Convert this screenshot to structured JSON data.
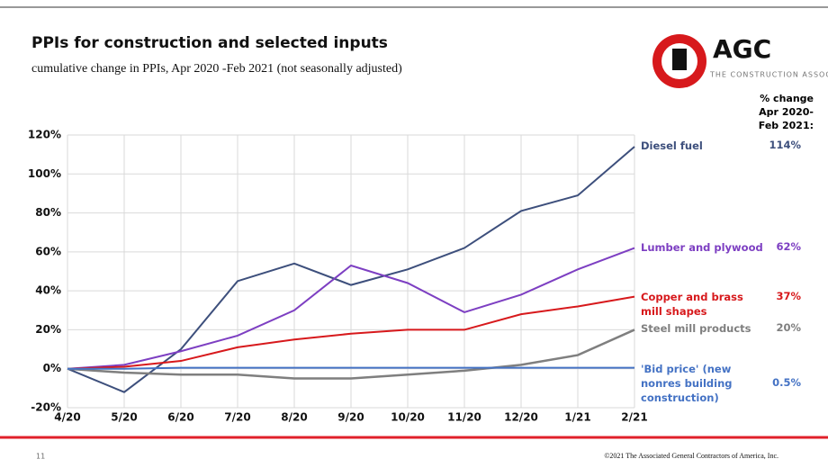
{
  "chart_data": {
    "type": "line",
    "title": "PPIs for construction and selected inputs",
    "subtitle": "cumulative change in PPIs, Apr 2020 -Feb 2021 (not seasonally adjusted)",
    "logo": {
      "name": "AGC",
      "tagline": "THE CONSTRUCTION ASSOCIATION"
    },
    "column_header": "% change Apr 2020-Feb 2021:",
    "footer": "©2021 The Associated General Contractors of America, Inc.",
    "page_number": "11",
    "categories": [
      "4/20",
      "5/20",
      "6/20",
      "7/20",
      "8/20",
      "9/20",
      "10/20",
      "11/20",
      "12/20",
      "1/21",
      "2/21"
    ],
    "ylim": [
      -20,
      120
    ],
    "yticks": [
      {
        "value": -20,
        "label": "-20%"
      },
      {
        "value": 0,
        "label": "0%"
      },
      {
        "value": 20,
        "label": "20%"
      },
      {
        "value": 40,
        "label": "40%"
      },
      {
        "value": 60,
        "label": "60%"
      },
      {
        "value": 80,
        "label": "80%"
      },
      {
        "value": 100,
        "label": "100%"
      },
      {
        "value": 120,
        "label": "120%"
      }
    ],
    "grid": true,
    "series": [
      {
        "name": "Diesel fuel",
        "color": "#3d4f7c",
        "values": [
          0,
          -12,
          10,
          45,
          54,
          43,
          51,
          62,
          81,
          89,
          114
        ],
        "end_label": "114%"
      },
      {
        "name": "Lumber and plywood",
        "color": "#7d3fc2",
        "values": [
          0,
          2,
          9,
          17,
          30,
          53,
          44,
          29,
          38,
          51,
          62
        ],
        "end_label": "62%"
      },
      {
        "name": "Copper and brass mill shapes",
        "color": "#d7191c",
        "values": [
          0,
          1,
          4,
          11,
          15,
          18,
          20,
          20,
          28,
          32,
          37
        ],
        "end_label": "37%"
      },
      {
        "name": "Steel mill products",
        "color": "#7f7f7f",
        "values": [
          0,
          -2,
          -3,
          -3,
          -5,
          -5,
          -3,
          -1,
          2,
          7,
          20
        ],
        "end_label": "20%"
      },
      {
        "name": "'Bid price' (new nonres building construction)",
        "color": "#4472c4",
        "values": [
          0,
          0,
          0.5,
          0.5,
          0.5,
          0.5,
          0.5,
          0.5,
          0.5,
          0.5,
          0.5
        ],
        "end_label": "0.5%"
      }
    ]
  }
}
